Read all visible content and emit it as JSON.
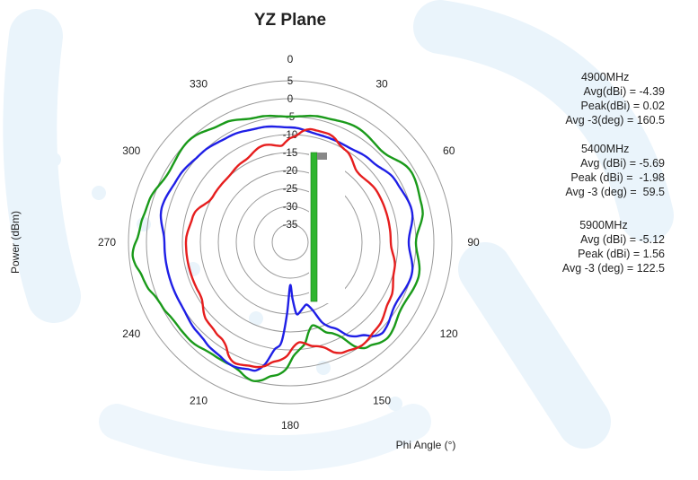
{
  "chart_data": {
    "type": "polar-line",
    "title": "YZ Plane",
    "xlabel": "Phi Angle (°)",
    "ylabel": "Power (dBm)",
    "angle_ticks": [
      "0",
      "30",
      "60",
      "90",
      "120",
      "150",
      "180",
      "210",
      "240",
      "270",
      "300",
      "330"
    ],
    "radial_ticks": [
      5,
      0,
      -5,
      -10,
      -15,
      -20,
      -25,
      -30,
      -35
    ],
    "rlim": [
      -40,
      5
    ],
    "angle_zero": "top",
    "angle_direction": "clockwise",
    "grid": true,
    "series": [
      {
        "color": "#1a9a1a",
        "angles": [
          0,
          15,
          30,
          45,
          60,
          75,
          90,
          105,
          120,
          135,
          145,
          155,
          165,
          175,
          185,
          195,
          205,
          215,
          225,
          235,
          245,
          255,
          265,
          275,
          285,
          300,
          315,
          330,
          345,
          360
        ],
        "values": [
          -5,
          -4,
          -3,
          -4,
          -1,
          -2,
          -5,
          -3,
          -4,
          -2,
          -4,
          -12,
          -16,
          -10,
          -3,
          0,
          -2,
          -2,
          -1,
          -1,
          0,
          2,
          4,
          2,
          1,
          -1,
          0,
          -2,
          -4,
          -5
        ]
      },
      {
        "color": "#1f1fe6",
        "angles": [
          0,
          15,
          30,
          45,
          60,
          75,
          90,
          105,
          120,
          135,
          145,
          155,
          165,
          175,
          180,
          185,
          195,
          205,
          215,
          225,
          240,
          255,
          270,
          285,
          300,
          315,
          330,
          345,
          360
        ],
        "values": [
          -8,
          -9,
          -9,
          -8,
          -6,
          -5,
          -7,
          -5,
          -6,
          -4,
          -8,
          -14,
          -22,
          -20,
          -28,
          -12,
          -3,
          -2,
          -3,
          -4,
          -5,
          -5,
          -5,
          -3,
          -4,
          -5,
          -6,
          -7,
          -8
        ]
      },
      {
        "color": "#e61e1e",
        "angles": [
          0,
          10,
          20,
          30,
          45,
          60,
          75,
          90,
          105,
          120,
          135,
          145,
          155,
          165,
          175,
          185,
          195,
          205,
          215,
          225,
          240,
          255,
          270,
          285,
          300,
          315,
          330,
          345,
          355,
          360
        ],
        "values": [
          -11,
          -8,
          -8,
          -10,
          -13,
          -12,
          -12,
          -12,
          -10,
          -8,
          -6,
          -5,
          -6,
          -10,
          -12,
          -7,
          -4,
          -3,
          -7,
          -8,
          -11,
          -11,
          -11,
          -12,
          -15,
          -15,
          -14,
          -12,
          -13,
          -11
        ]
      }
    ],
    "annotations": [
      {
        "freq": "4900MHz",
        "lines": [
          "Avg(dBi) = -4.39",
          "Peak(dBi) = 0.02",
          "Avg -3(deg) = 160.5"
        ]
      },
      {
        "freq": "5400MHz",
        "lines": [
          "Avg (dBi) = -5.69",
          "Peak (dBi) =  -1.98",
          "Avg -3 (deg) =  59.5"
        ]
      },
      {
        "freq": "5900MHz",
        "lines": [
          "Avg (dBi) = -5.12",
          "Peak (dBi) = 1.56",
          "Avg -3 (deg) = 122.5"
        ]
      }
    ]
  }
}
